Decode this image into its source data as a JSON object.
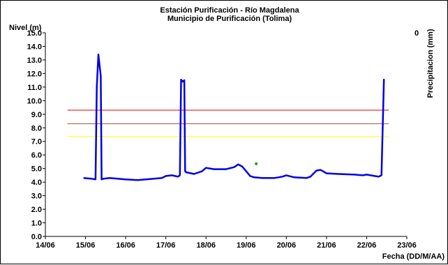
{
  "chart_data": {
    "type": "line",
    "title": "Estación Purificación - Río Magdalena",
    "subtitle": "Municipio de Purificación (Tolima)",
    "ylabel": "Nivel (m)",
    "xlabel": "Fecha (DD/M/AA)",
    "y2label": "Precipitacion (mm)",
    "ylim": [
      0,
      15
    ],
    "y_ticks": [
      "0.0",
      "1.0",
      "2.0",
      "3.0",
      "4.0",
      "5.0",
      "6.0",
      "7.0",
      "8.0",
      "9.0",
      "10.0",
      "11.0",
      "12.0",
      "13.0",
      "14.0",
      "15.0"
    ],
    "y2_tick": "0",
    "xlim": [
      0,
      9
    ],
    "x_ticks": [
      "14/06",
      "15/06",
      "16/06",
      "17/06",
      "18/06",
      "19/06",
      "20/06",
      "21/06",
      "22/06",
      "23/06"
    ],
    "grid": false,
    "legend": "none",
    "series": [
      {
        "color": "#0000e6",
        "x": [
          0.95,
          1.15,
          1.25,
          1.28,
          1.32,
          1.38,
          1.4,
          1.45,
          1.6,
          2.0,
          2.3,
          2.5,
          2.7,
          2.9,
          3.0,
          3.15,
          3.3,
          3.35,
          3.38,
          3.42,
          3.46,
          3.48,
          3.52,
          3.55,
          3.7,
          3.9,
          4.0,
          4.2,
          4.5,
          4.7,
          4.8,
          4.9,
          5.0,
          5.1,
          5.2,
          5.4,
          5.7,
          5.9,
          6.0,
          6.2,
          6.5,
          6.6,
          6.75,
          6.85,
          7.0,
          7.3,
          7.7,
          7.9,
          8.0,
          8.2,
          8.3,
          8.37,
          8.43
        ],
        "y": [
          4.3,
          4.25,
          4.2,
          11.0,
          13.4,
          11.8,
          4.2,
          4.25,
          4.3,
          4.2,
          4.15,
          4.2,
          4.25,
          4.3,
          4.45,
          4.5,
          4.4,
          4.5,
          11.55,
          11.4,
          11.5,
          4.8,
          4.7,
          4.7,
          4.6,
          4.8,
          5.05,
          4.95,
          4.95,
          5.1,
          5.3,
          5.15,
          4.8,
          4.45,
          4.35,
          4.3,
          4.3,
          4.4,
          4.5,
          4.35,
          4.3,
          4.4,
          4.85,
          4.9,
          4.65,
          4.6,
          4.55,
          4.5,
          4.55,
          4.45,
          4.4,
          4.5,
          11.6
        ]
      }
    ],
    "reference_lines": [
      {
        "y": 9.3,
        "color": "#e00000"
      },
      {
        "y": 8.3,
        "color": "#a0522d"
      },
      {
        "y": 7.35,
        "color": "#ffff00"
      }
    ],
    "reference_x_range": [
      0.55,
      8.55
    ],
    "points": [
      {
        "x": 5.25,
        "y": 5.35,
        "color": "#00aa00"
      }
    ]
  }
}
